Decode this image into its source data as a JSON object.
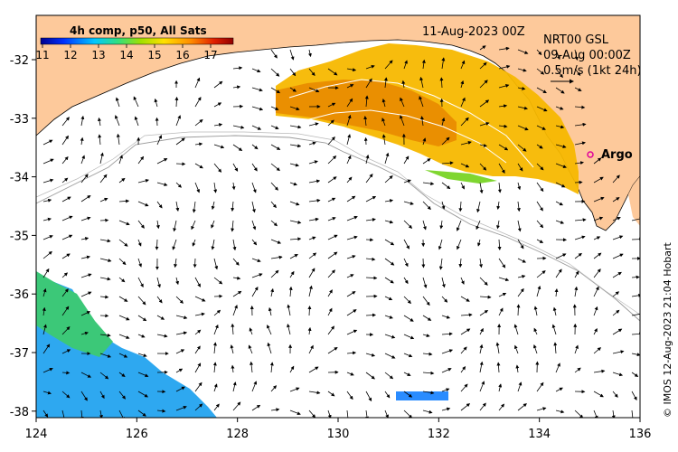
{
  "map": {
    "date_label": "11-Aug-2023 00Z",
    "colorbar": {
      "title": "4h comp, p50, All Sats",
      "ticks": [
        "11",
        "12",
        "13",
        "14",
        "15",
        "16",
        "17"
      ]
    },
    "current_legend": {
      "line1": "NRT00 GSL",
      "line2": "09-Aug 00:00Z",
      "line3": "0.5m/s (1kt 24h)"
    },
    "argo_label": "Argo",
    "credit": "© IMOS 12-Aug-2023 21:04 Hobart",
    "x_ticks": [
      "124",
      "126",
      "128",
      "130",
      "132",
      "134",
      "136"
    ],
    "y_ticks": [
      "-32",
      "-33",
      "-34",
      "-35",
      "-36",
      "-37",
      "-38"
    ],
    "colors": {
      "land": "#fdc99b",
      "argo": "#e0009a",
      "sst_warm": "#ff9e00",
      "sst_cool": "#2a9cff"
    }
  }
}
